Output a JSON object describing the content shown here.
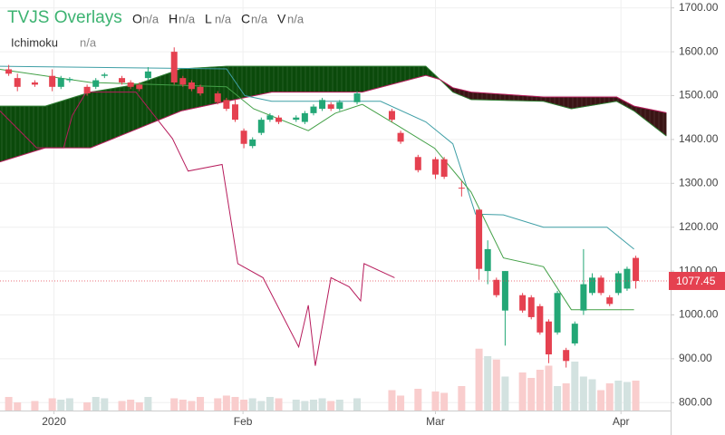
{
  "chart_data": {
    "type": "candlestick",
    "title": "TVJS Overlays",
    "legend_fields": [
      {
        "key": "O",
        "value": "n/a"
      },
      {
        "key": "H",
        "value": "n/a"
      },
      {
        "key": "L",
        "value": "n/a"
      },
      {
        "key": "C",
        "value": "n/a"
      },
      {
        "key": "V",
        "value": "n/a"
      }
    ],
    "overlay": {
      "name": "Ichimoku",
      "value": "n/a"
    },
    "xlim": [
      0,
      77
    ],
    "xticks": [
      {
        "value": 6.2,
        "label": "2020"
      },
      {
        "value": 27.9,
        "label": "Feb"
      },
      {
        "value": 50,
        "label": "Mar"
      },
      {
        "value": 71.3,
        "label": "Apr"
      }
    ],
    "ylim": [
      782,
      1718
    ],
    "yticks": [
      {
        "value": 800,
        "label": "800.00"
      },
      {
        "value": 900,
        "label": "900.00"
      },
      {
        "value": 1000,
        "label": "1000.00"
      },
      {
        "value": 1100,
        "label": "1100.00"
      },
      {
        "value": 1200,
        "label": "1200.00"
      },
      {
        "value": 1300,
        "label": "1300.00"
      },
      {
        "value": 1400,
        "label": "1400.00"
      },
      {
        "value": 1500,
        "label": "1500.00"
      },
      {
        "value": 1600,
        "label": "1600.00"
      },
      {
        "value": 1700,
        "label": "1700.00"
      }
    ],
    "grid": true,
    "up_color": "#23a776",
    "down_color": "#e54150",
    "volume_up_color": "#d3e2e0",
    "volume_down_color": "#f9cdcd",
    "vlim": [
      0,
      120
    ],
    "last_price": 1077.45,
    "last_price_color": "#e54150",
    "x": [
      1,
      2,
      4,
      6,
      7,
      8,
      10,
      11,
      12,
      14,
      15,
      16,
      17,
      20,
      21,
      22,
      23,
      25,
      26,
      27,
      28,
      29,
      30,
      31,
      32,
      34,
      35,
      36,
      37,
      38,
      39,
      41,
      45,
      46,
      48,
      50,
      51,
      53,
      55,
      56,
      57,
      58,
      60,
      61,
      62,
      63,
      64,
      65,
      66,
      67,
      68,
      69,
      70,
      71,
      72,
      73
    ],
    "open": [
      1560,
      1540,
      1530,
      1545,
      1520,
      1535,
      1520,
      1520,
      1545,
      1540,
      1530,
      1525,
      1540,
      1600,
      1540,
      1530,
      1520,
      1505,
      1490,
      1480,
      1420,
      1385,
      1415,
      1445,
      1450,
      1445,
      1440,
      1460,
      1470,
      1480,
      1470,
      1485,
      1465,
      1415,
      1360,
      1355,
      1355,
      1290,
      1240,
      1100,
      1080,
      1010,
      1045,
      1040,
      1020,
      985,
      960,
      920,
      935,
      1010,
      1050,
      1085,
      1040,
      1050,
      1060,
      1130
    ],
    "high": [
      1570,
      1550,
      1535,
      1560,
      1545,
      1542,
      1525,
      1540,
      1552,
      1545,
      1535,
      1530,
      1565,
      1610,
      1545,
      1535,
      1525,
      1510,
      1495,
      1490,
      1425,
      1405,
      1450,
      1460,
      1455,
      1455,
      1465,
      1480,
      1495,
      1485,
      1490,
      1510,
      1470,
      1420,
      1365,
      1360,
      1360,
      1305,
      1240,
      1170,
      1085,
      1100,
      1050,
      1045,
      1025,
      990,
      1055,
      925,
      985,
      1150,
      1095,
      1090,
      1045,
      1100,
      1110,
      1135
    ],
    "low": [
      1545,
      1510,
      1520,
      1510,
      1515,
      1530,
      1500,
      1515,
      1540,
      1525,
      1515,
      1510,
      1535,
      1525,
      1520,
      1510,
      1500,
      1480,
      1465,
      1440,
      1380,
      1380,
      1410,
      1440,
      1435,
      1440,
      1435,
      1455,
      1465,
      1465,
      1465,
      1480,
      1440,
      1390,
      1325,
      1310,
      1310,
      1270,
      1080,
      1070,
      1040,
      930,
      1005,
      990,
      955,
      890,
      955,
      880,
      930,
      1000,
      1045,
      1045,
      1020,
      1045,
      1055,
      1060
    ],
    "close": [
      1550,
      1520,
      1525,
      1520,
      1540,
      1538,
      1505,
      1535,
      1548,
      1530,
      1520,
      1515,
      1555,
      1530,
      1525,
      1515,
      1505,
      1485,
      1470,
      1445,
      1390,
      1400,
      1445,
      1455,
      1440,
      1450,
      1460,
      1475,
      1490,
      1470,
      1485,
      1505,
      1445,
      1395,
      1330,
      1320,
      1315,
      1288,
      1105,
      1150,
      1045,
      1100,
      1010,
      995,
      960,
      910,
      1050,
      895,
      980,
      1070,
      1085,
      1050,
      1025,
      1095,
      1105,
      1077.45
    ],
    "volume": [
      20,
      12,
      14,
      18,
      16,
      18,
      12,
      20,
      18,
      14,
      16,
      12,
      20,
      18,
      16,
      14,
      20,
      18,
      22,
      20,
      16,
      18,
      14,
      20,
      18,
      16,
      14,
      16,
      18,
      14,
      16,
      18,
      30,
      22,
      32,
      28,
      26,
      36,
      91,
      80,
      75,
      50,
      56,
      48,
      60,
      66,
      36,
      40,
      72,
      50,
      46,
      30,
      40,
      44,
      42,
      44
    ],
    "cloud": {
      "x": [
        0,
        5.2,
        10.4,
        15.6,
        20.8,
        26,
        31.2,
        41.6,
        48.9,
        50.5,
        52,
        54.1,
        62.4,
        65.6,
        70.8,
        72.8,
        76.5
      ],
      "span_a": [
        1476,
        1476,
        1508,
        1525,
        1561,
        1567,
        1567,
        1567,
        1567,
        1537,
        1508,
        1491,
        1487,
        1470,
        1487,
        1465,
        1408
      ],
      "span_b": [
        1349,
        1381,
        1381,
        1423,
        1465,
        1487,
        1508,
        1508,
        1546,
        1537,
        1518,
        1508,
        1497,
        1497,
        1497,
        1476,
        1461
      ],
      "span_a_color": "#2e7d32",
      "span_b_color": "#b71c5c",
      "bull_fill": "#0b4a0b",
      "bear_fill": "#3a1414"
    },
    "lines": [
      {
        "color": "#3f9fa6",
        "x": [
          0,
          26,
          28.1,
          31.2,
          43.7,
          48.9,
          52,
          54.6,
          57.8,
          62.4,
          69.7,
          72.8
        ],
        "values": [
          1567,
          1561,
          1500,
          1487,
          1487,
          1440,
          1390,
          1230,
          1228,
          1200,
          1200,
          1150
        ]
      },
      {
        "color": "#43a047",
        "x": [
          0,
          10.4,
          26,
          29.1,
          35.4,
          38.5,
          41.6,
          45.8,
          49.9,
          54.1,
          57.8,
          62.4,
          65.6,
          72.8
        ],
        "values": [
          1560,
          1530,
          1520,
          1470,
          1420,
          1460,
          1480,
          1430,
          1380,
          1280,
          1130,
          1110,
          1012,
          1012
        ]
      },
      {
        "color": "#b71c5c",
        "x": [
          0,
          4.2,
          7.3,
          8.3,
          9.9,
          15.6,
          17.7,
          19.8,
          21.6,
          25.5,
          27.3,
          30.2,
          34.3,
          35.4,
          36.2,
          38,
          40.1,
          41.4,
          41.8,
          45.3
        ],
        "values": [
          1465,
          1381,
          1381,
          1455,
          1508,
          1508,
          1455,
          1402,
          1328,
          1343,
          1117,
          1085,
          927,
          1022,
          884,
          1085,
          1064,
          1032,
          1117,
          1085
        ]
      }
    ]
  }
}
